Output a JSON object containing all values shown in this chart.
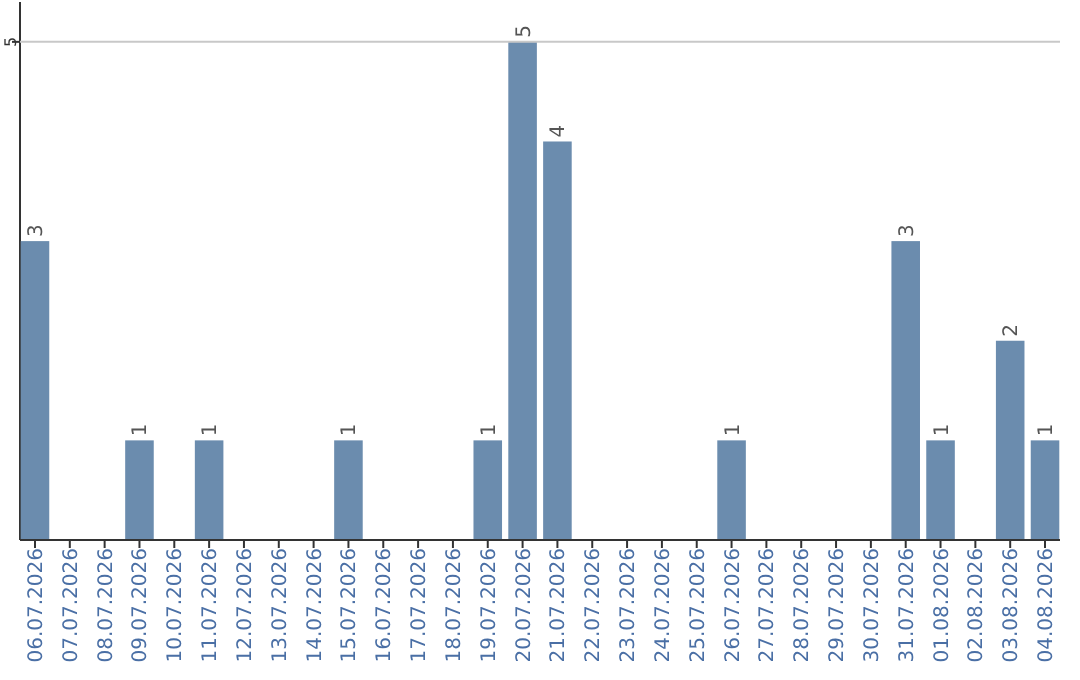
{
  "chart_data": {
    "type": "bar",
    "categories": [
      "06.07.2026",
      "07.07.2026",
      "08.07.2026",
      "09.07.2026",
      "10.07.2026",
      "11.07.2026",
      "12.07.2026",
      "13.07.2026",
      "14.07.2026",
      "15.07.2026",
      "16.07.2026",
      "17.07.2026",
      "18.07.2026",
      "19.07.2026",
      "20.07.2026",
      "21.07.2026",
      "22.07.2026",
      "23.07.2026",
      "24.07.2026",
      "25.07.2026",
      "26.07.2026",
      "27.07.2026",
      "28.07.2026",
      "29.07.2026",
      "30.07.2026",
      "31.07.2026",
      "01.08.2026",
      "02.08.2026",
      "03.08.2026",
      "04.08.2026"
    ],
    "values": [
      3,
      0,
      0,
      1,
      0,
      1,
      0,
      0,
      0,
      1,
      0,
      0,
      0,
      1,
      5,
      4,
      0,
      0,
      0,
      0,
      1,
      0,
      0,
      0,
      0,
      3,
      1,
      0,
      2,
      1
    ],
    "value_labels": [
      "3",
      null,
      null,
      "1",
      null,
      "1",
      null,
      null,
      null,
      "1",
      null,
      null,
      null,
      "1",
      "5",
      "4",
      null,
      null,
      null,
      null,
      "1",
      null,
      null,
      null,
      null,
      "3",
      "1",
      null,
      "2",
      "1"
    ],
    "color": "#6b8cae",
    "ylim": [
      0,
      5.4
    ],
    "yticks": [
      5
    ],
    "grid": "y"
  }
}
